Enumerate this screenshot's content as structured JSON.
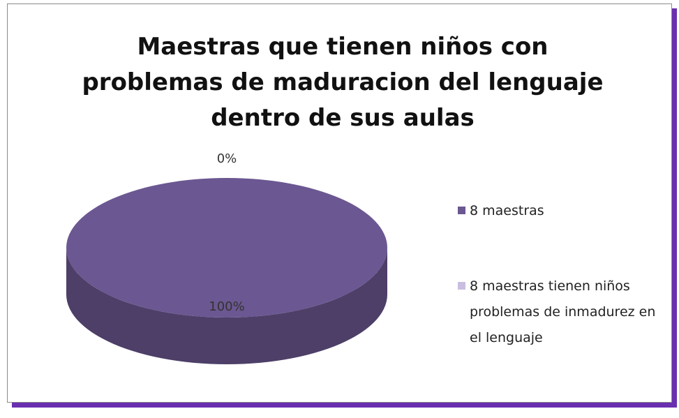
{
  "chart_data": {
    "type": "pie",
    "title": "Maestras que tienen niños con problemas de maduracion del lenguaje dentro de sus aulas",
    "categories": [
      "8 maestras",
      "8 maestras tienen niños problemas de inmadurez en el lenguaje"
    ],
    "values": [
      100,
      0
    ],
    "value_labels": [
      "100%",
      "0%"
    ],
    "colors": [
      "#6b5791",
      "#c9bde0"
    ],
    "legend": "right"
  }
}
